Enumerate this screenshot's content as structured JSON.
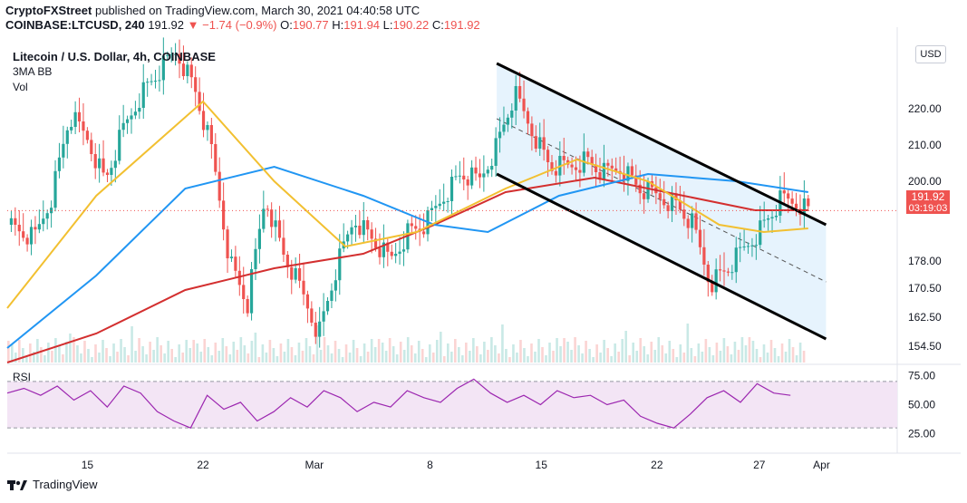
{
  "header": {
    "publisher": "CryptoFXStreet",
    "published_text": "published on TradingView.com, March 30, 2021 04:40:58 UTC"
  },
  "ohlc": {
    "symbol": "COINBASE:LTCUSD, 240",
    "last": "191.92",
    "change": "▼ −1.74 (−0.9%)",
    "o_label": "O:",
    "o": "190.77",
    "h_label": "H:",
    "h": "191.94",
    "l_label": "L:",
    "l": "190.22",
    "c_label": "C:",
    "c": "191.92"
  },
  "legend": {
    "title": "Litecoin / U.S. Dollar, 4h, COINBASE",
    "indicator1": "3MA BB",
    "indicator2": "Vol"
  },
  "price_tag": {
    "price": "191.92",
    "countdown": "03:19:03"
  },
  "usd_button": "USD",
  "footer": {
    "brand": "TradingView"
  },
  "colors": {
    "up": "#26a69a",
    "down": "#ef5350",
    "ma_fast": "#f2c031",
    "ma_mid": "#2196f3",
    "ma_slow": "#d32f2f",
    "rsi": "#9c27b0",
    "channel_fill": "#e3f2fd",
    "price_tag": "#ef5350"
  },
  "chart_data": [
    {
      "type": "candlestick",
      "x_tick_labels": [
        "15",
        "22",
        "Mar",
        "8",
        "15",
        "22",
        "27",
        "Apr"
      ],
      "y_tick_labels": [
        "154.50",
        "162.50",
        "170.50",
        "178.00",
        "200.00",
        "210.00",
        "220.00"
      ],
      "ylim": [
        150,
        240
      ],
      "last_price": 191.92,
      "channel": {
        "upper": [
          [
            0.0,
            232.5
          ],
          [
            1.0,
            188.0
          ]
        ],
        "lower": [
          [
            0.0,
            202.0
          ],
          [
            1.0,
            156.5
          ]
        ]
      },
      "close_path": [
        [
          0.0,
          188
        ],
        [
          0.03,
          184
        ],
        [
          0.05,
          196
        ],
        [
          0.07,
          218
        ],
        [
          0.09,
          212
        ],
        [
          0.11,
          200
        ],
        [
          0.13,
          214
        ],
        [
          0.15,
          224
        ],
        [
          0.17,
          230
        ],
        [
          0.19,
          236
        ],
        [
          0.21,
          226
        ],
        [
          0.23,
          208
        ],
        [
          0.25,
          178
        ],
        [
          0.27,
          166
        ],
        [
          0.29,
          196
        ],
        [
          0.31,
          180
        ],
        [
          0.33,
          170
        ],
        [
          0.35,
          158
        ],
        [
          0.37,
          176
        ],
        [
          0.39,
          190
        ],
        [
          0.41,
          184
        ],
        [
          0.43,
          178
        ],
        [
          0.45,
          186
        ],
        [
          0.47,
          188
        ],
        [
          0.49,
          196
        ],
        [
          0.51,
          202
        ],
        [
          0.53,
          200
        ],
        [
          0.55,
          210
        ],
        [
          0.57,
          224
        ],
        [
          0.59,
          214
        ],
        [
          0.61,
          204
        ],
        [
          0.63,
          204
        ],
        [
          0.65,
          206
        ],
        [
          0.67,
          202
        ],
        [
          0.69,
          204
        ],
        [
          0.71,
          198
        ],
        [
          0.73,
          196
        ],
        [
          0.75,
          194
        ],
        [
          0.77,
          188
        ],
        [
          0.78,
          180
        ],
        [
          0.79,
          172
        ],
        [
          0.81,
          176
        ],
        [
          0.83,
          182
        ],
        [
          0.85,
          188
        ],
        [
          0.87,
          195
        ],
        [
          0.89,
          194
        ],
        [
          0.9,
          191.92
        ]
      ],
      "ma_fast": [
        [
          0.0,
          165
        ],
        [
          0.1,
          196
        ],
        [
          0.22,
          222
        ],
        [
          0.3,
          200
        ],
        [
          0.38,
          182
        ],
        [
          0.46,
          186
        ],
        [
          0.56,
          198
        ],
        [
          0.64,
          206
        ],
        [
          0.72,
          200
        ],
        [
          0.8,
          188
        ],
        [
          0.85,
          186
        ],
        [
          0.9,
          187
        ]
      ],
      "ma_mid": [
        [
          0.0,
          154
        ],
        [
          0.1,
          174
        ],
        [
          0.2,
          198
        ],
        [
          0.3,
          204
        ],
        [
          0.4,
          196
        ],
        [
          0.48,
          188
        ],
        [
          0.54,
          186
        ],
        [
          0.62,
          196
        ],
        [
          0.72,
          202
        ],
        [
          0.82,
          200
        ],
        [
          0.9,
          197
        ]
      ],
      "ma_slow": [
        [
          0.0,
          150
        ],
        [
          0.1,
          158
        ],
        [
          0.2,
          170
        ],
        [
          0.3,
          176
        ],
        [
          0.4,
          180
        ],
        [
          0.48,
          188
        ],
        [
          0.56,
          197
        ],
        [
          0.66,
          201
        ],
        [
          0.76,
          196
        ],
        [
          0.84,
          192
        ],
        [
          0.9,
          192
        ]
      ]
    },
    {
      "type": "line",
      "name": "RSI",
      "y_tick_labels": [
        "75.00",
        "50.00",
        "25.00"
      ],
      "ylim": [
        20,
        80
      ],
      "values": [
        60,
        64,
        58,
        66,
        54,
        62,
        48,
        66,
        60,
        44,
        36,
        30,
        58,
        46,
        52,
        36,
        44,
        56,
        48,
        62,
        56,
        44,
        52,
        48,
        62,
        56,
        52,
        64,
        72,
        60,
        52,
        58,
        50,
        62,
        56,
        58,
        50,
        54,
        40,
        34,
        30,
        42,
        56,
        62,
        52,
        68,
        60,
        58
      ]
    }
  ]
}
